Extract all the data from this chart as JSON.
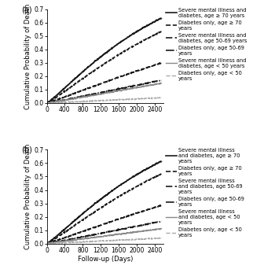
{
  "panel_a": {
    "label": "(a)",
    "lines": [
      {
        "name": "Severe mental illness and\ndiabetes, age ≥ 70 years",
        "color": "#1a1a1a",
        "linestyle": "solid",
        "linewidth": 1.2,
        "end_value": 0.635,
        "k": 1.15,
        "seed": 42
      },
      {
        "name": "Diabetes only, age ≥ 70\nyears",
        "color": "#1a1a1a",
        "linestyle": "dashed",
        "linewidth": 1.2,
        "end_value": 0.535,
        "k": 1.15,
        "seed": 10
      },
      {
        "name": "Severe mental illness and\ndiabetes, age 50-69 years",
        "color": "#1a1a1a",
        "linestyle": "densely_dashed",
        "linewidth": 1.2,
        "end_value": 0.3,
        "k": 1.1,
        "seed": 20
      },
      {
        "name": "Diabetes only, age 50-69\nyears",
        "color": "#1a1a1a",
        "linestyle": "dashdot",
        "linewidth": 1.2,
        "end_value": 0.17,
        "k": 1.1,
        "seed": 30
      },
      {
        "name": "Severe mental illness and\ndiabetes, age < 50 years",
        "color": "#888888",
        "linestyle": "solid",
        "linewidth": 1.0,
        "end_value": 0.148,
        "k": 1.1,
        "seed": 5
      },
      {
        "name": "Diabetes only, age < 50\nyears",
        "color": "#aaaaaa",
        "linestyle": "dashed",
        "linewidth": 1.0,
        "end_value": 0.04,
        "k": 1.05,
        "seed": 7
      }
    ]
  },
  "panel_b": {
    "label": "(b)",
    "lines": [
      {
        "name": "Severe mental illness\nand diabetes, age ≥ 70\nyears",
        "color": "#1a1a1a",
        "linestyle": "solid",
        "linewidth": 1.2,
        "end_value": 0.615,
        "k": 1.15,
        "seed": 42
      },
      {
        "name": "Diabetes only, age ≥ 70\nyears",
        "color": "#1a1a1a",
        "linestyle": "dashed",
        "linewidth": 1.2,
        "end_value": 0.52,
        "k": 1.15,
        "seed": 10
      },
      {
        "name": "Severe mental illness\nand diabetes, age 50-69\nyears",
        "color": "#1a1a1a",
        "linestyle": "densely_dashed",
        "linewidth": 1.2,
        "end_value": 0.285,
        "k": 1.1,
        "seed": 20
      },
      {
        "name": "Diabetes only, age 50-69\nyears",
        "color": "#1a1a1a",
        "linestyle": "dashdot",
        "linewidth": 1.2,
        "end_value": 0.165,
        "k": 1.1,
        "seed": 30
      },
      {
        "name": "Severe mental illness\nand diabetes, age < 50\nyears",
        "color": "#888888",
        "linestyle": "solid",
        "linewidth": 1.0,
        "end_value": 0.11,
        "k": 1.05,
        "seed": 5
      },
      {
        "name": "Diabetes only, age < 50\nyears",
        "color": "#aaaaaa",
        "linestyle": "dashed",
        "linewidth": 1.0,
        "end_value": 0.04,
        "k": 1.05,
        "seed": 7
      }
    ]
  },
  "xlim": [
    0,
    2600
  ],
  "ylim": [
    0,
    0.7
  ],
  "xticks": [
    0,
    400,
    800,
    1200,
    1600,
    2000,
    2400
  ],
  "yticks": [
    0.0,
    0.1,
    0.2,
    0.3,
    0.4,
    0.5,
    0.6,
    0.7
  ],
  "xlabel": "Follow-up (Days)",
  "ylabel": "Cumulative Probability of Death",
  "legend_fontsize": 4.8,
  "axis_fontsize": 6.0,
  "tick_fontsize": 5.5,
  "background_color": "#ffffff"
}
